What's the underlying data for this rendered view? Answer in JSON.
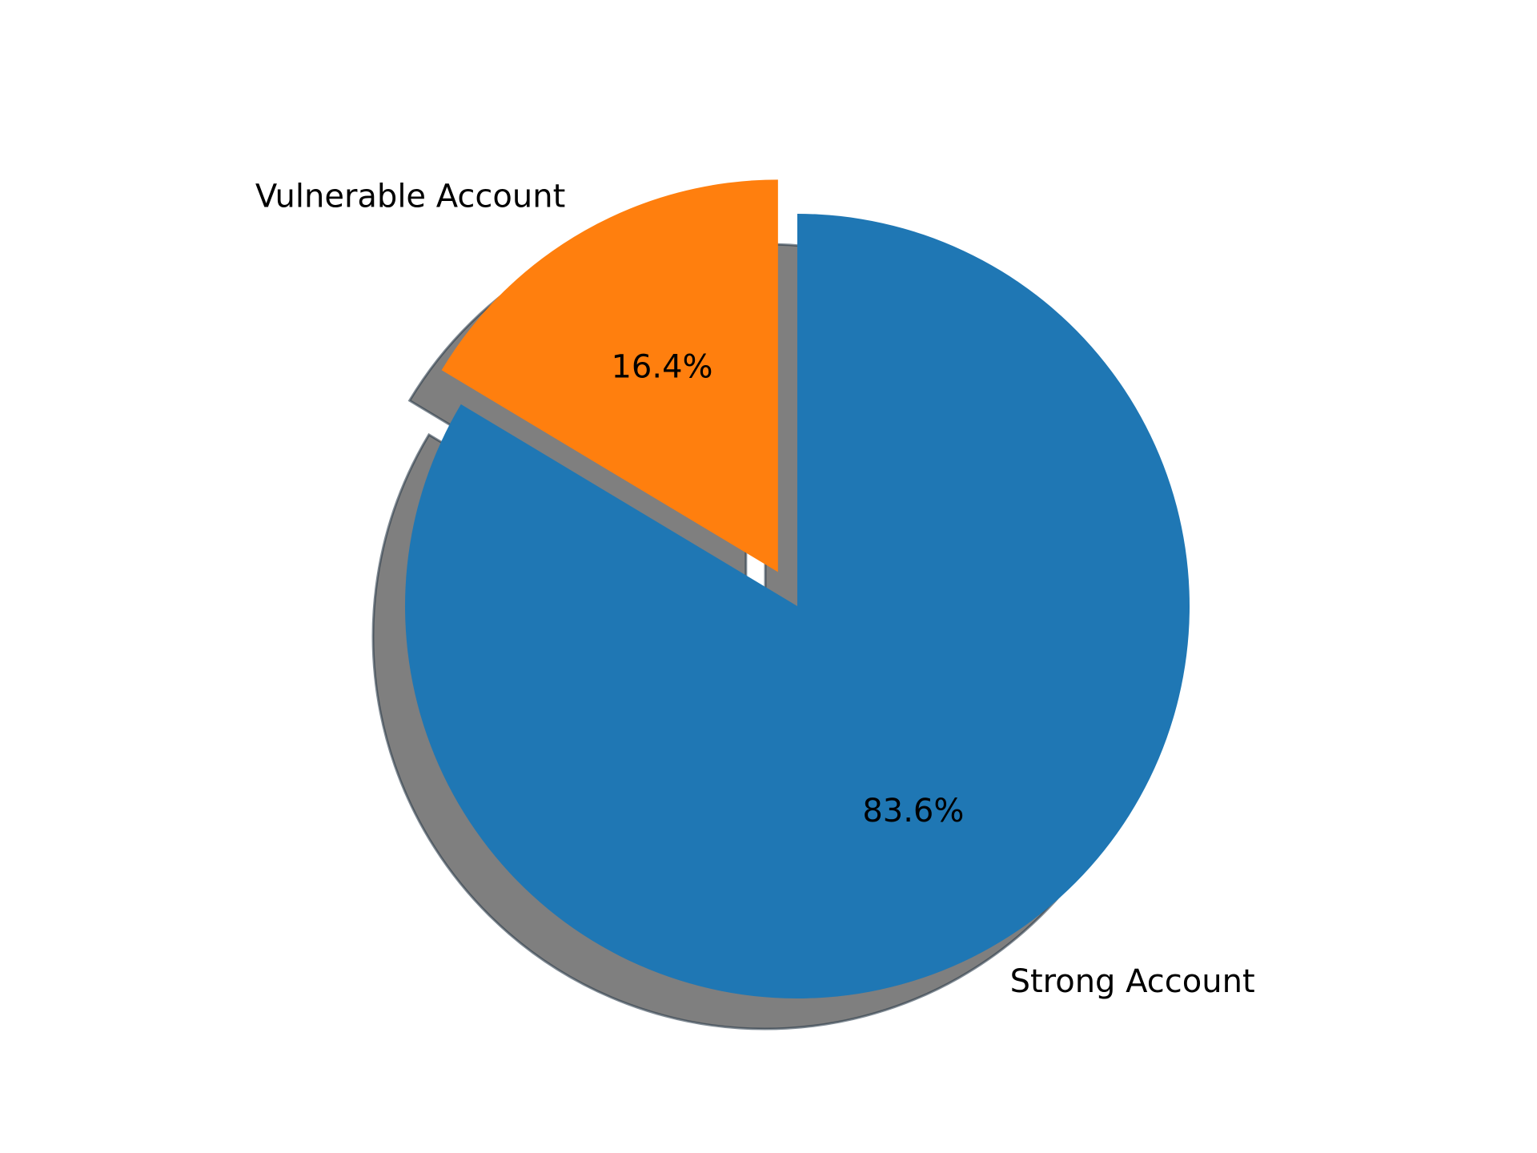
{
  "chart_data": {
    "type": "pie",
    "title": "",
    "slices": [
      {
        "label": "Strong Account",
        "value": 83.6,
        "pct_label": "83.6%",
        "color": "#1f77b4",
        "exploded": false
      },
      {
        "label": "Vulnerable Account",
        "value": 16.4,
        "pct_label": "16.4%",
        "color": "#ff7f0e",
        "exploded": true
      }
    ],
    "start_angle": "90",
    "direction": "clockwise",
    "shadow": true,
    "background": "#ffffff"
  }
}
